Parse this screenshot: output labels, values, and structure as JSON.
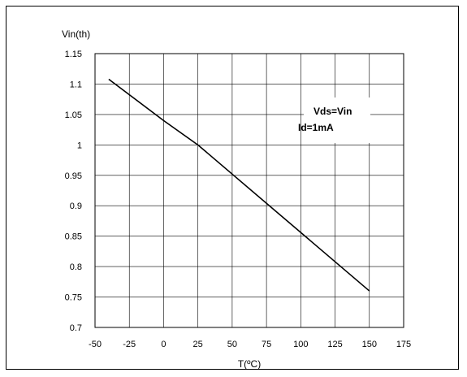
{
  "chart_data": {
    "type": "line",
    "title": "",
    "xlabel": "T(ºC)",
    "ylabel": "Vin(th)",
    "xlim": [
      -50,
      175
    ],
    "ylim": [
      0.7,
      1.15
    ],
    "x_ticks": [
      -50,
      -25,
      0,
      25,
      50,
      75,
      100,
      125,
      150,
      175
    ],
    "y_ticks": [
      0.7,
      0.75,
      0.8,
      0.85,
      0.9,
      0.95,
      1,
      1.05,
      1.1,
      1.15
    ],
    "x_tick_labels": [
      "-50",
      "-25",
      "0",
      "25",
      "50",
      "75",
      "100",
      "125",
      "150",
      "175"
    ],
    "y_tick_labels": [
      "0.7",
      "0.75",
      "0.8",
      "0.85",
      "0.9",
      "0.95",
      "1",
      "1.05",
      "1.1",
      "1.15"
    ],
    "grid": true,
    "series": [
      {
        "x": [
          -40,
          0,
          25,
          150
        ],
        "y": [
          1.108,
          1.04,
          1.0,
          0.76
        ],
        "color": "#000000"
      }
    ],
    "annotations": [
      "Vds=Vin",
      "Id=1mA"
    ]
  }
}
